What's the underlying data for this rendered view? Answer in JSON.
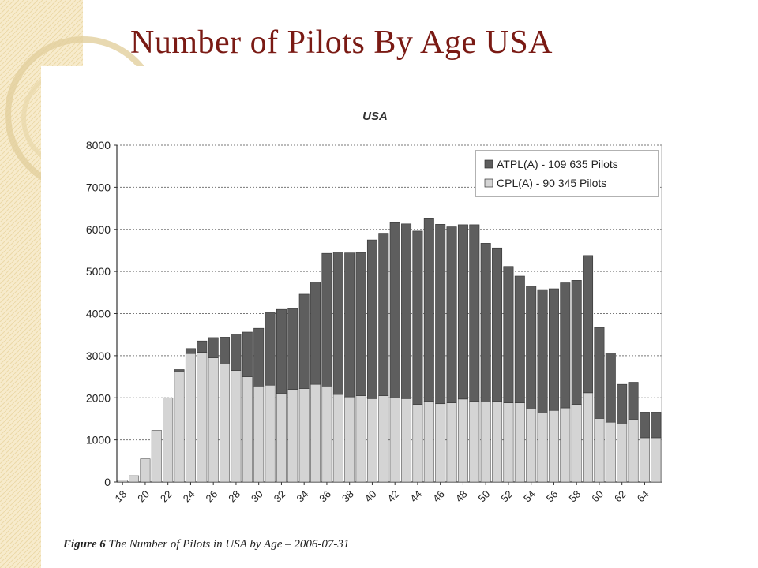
{
  "slide": {
    "title": "Number of Pilots By Age USA",
    "caption_bold": "Figure 6",
    "caption_text": "The Number of Pilots in USA by Age – 2006-07-31",
    "accent_color": "#7a1a14",
    "stripe_color": "#f5e6c0"
  },
  "chart_data": {
    "type": "bar",
    "stacked": true,
    "title": "USA",
    "xlabel": "",
    "ylabel": "",
    "ylim": [
      0,
      8000
    ],
    "yticks": [
      0,
      1000,
      2000,
      3000,
      4000,
      5000,
      6000,
      7000,
      8000
    ],
    "grid": true,
    "legend_position": "top-right",
    "categories": [
      "18",
      "19",
      "20",
      "21",
      "22",
      "23",
      "24",
      "25",
      "26",
      "27",
      "28",
      "29",
      "30",
      "31",
      "32",
      "33",
      "34",
      "35",
      "36",
      "37",
      "38",
      "39",
      "40",
      "41",
      "42",
      "43",
      "44",
      "45",
      "46",
      "47",
      "48",
      "49",
      "50",
      "51",
      "52",
      "53",
      "54",
      "55",
      "56",
      "57",
      "58",
      "59",
      "60",
      "61",
      "62",
      "63",
      "64",
      "65"
    ],
    "xtick_labels": [
      "18",
      "20",
      "22",
      "24",
      "26",
      "28",
      "30",
      "32",
      "34",
      "36",
      "38",
      "40",
      "42",
      "44",
      "46",
      "48",
      "50",
      "52",
      "54",
      "56",
      "58",
      "60",
      "62",
      "64"
    ],
    "series": [
      {
        "name": "CPL(A) - 90 345 Pilots",
        "color": "#d4d4d4",
        "values": [
          50,
          150,
          550,
          1230,
          2000,
          2620,
          3050,
          3080,
          2950,
          2800,
          2650,
          2500,
          2280,
          2300,
          2100,
          2200,
          2220,
          2320,
          2280,
          2080,
          2020,
          2050,
          1980,
          2050,
          2000,
          1980,
          1840,
          1920,
          1860,
          1880,
          1970,
          1920,
          1900,
          1920,
          1880,
          1880,
          1730,
          1640,
          1700,
          1760,
          1840,
          2120,
          1510,
          1420,
          1380,
          1480,
          1050,
          1050
        ]
      },
      {
        "name": "ATPL(A) - 109 635 Pilots",
        "color": "#5e5e5e",
        "values": [
          0,
          0,
          0,
          0,
          0,
          50,
          120,
          270,
          480,
          640,
          860,
          1060,
          1370,
          1720,
          2000,
          1920,
          2240,
          2430,
          3150,
          3380,
          3420,
          3400,
          3770,
          3860,
          4160,
          4150,
          4120,
          4350,
          4260,
          4180,
          4140,
          4190,
          3770,
          3640,
          3240,
          3010,
          2920,
          2930,
          2890,
          2970,
          2950,
          3260,
          2160,
          1640,
          940,
          890,
          610,
          610
        ]
      }
    ]
  }
}
